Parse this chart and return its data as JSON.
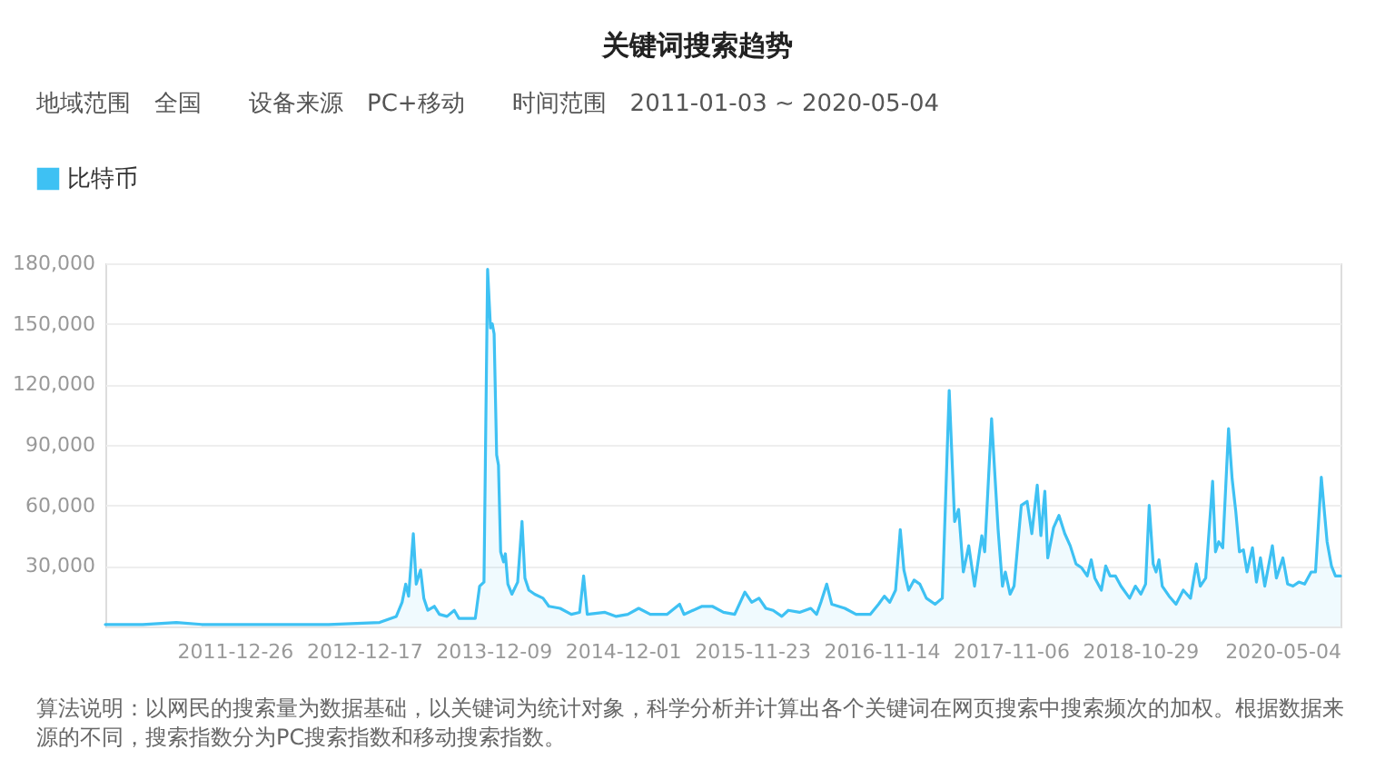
{
  "chart_data": {
    "type": "area",
    "title": "关键词搜索趋势",
    "subtitle": "地域范围　全国　　设备来源　PC+移动　　时间范围　2011-01-03 ~ 2020-05-04",
    "legend": "top left",
    "grid": "y",
    "xlim": [
      "2011-01-03",
      "2020-05-04"
    ],
    "xticks": [
      "2011-12-26",
      "2012-12-17",
      "2013-12-09",
      "2014-12-01",
      "2015-11-23",
      "2016-11-14",
      "2017-11-06",
      "2018-10-29",
      "2020-05-04"
    ],
    "ylim": [
      0,
      180000
    ],
    "yticks": [
      {
        "value": 30000,
        "label": "30,000"
      },
      {
        "value": 60000,
        "label": "60,000"
      },
      {
        "value": 90000,
        "label": "90,000"
      },
      {
        "value": 120000,
        "label": "120,000"
      },
      {
        "value": 150000,
        "label": "150,000"
      },
      {
        "value": 180000,
        "label": "180,000"
      }
    ],
    "x": [
      "2011-01-03",
      "2011-04-16",
      "2011-07-18",
      "2011-09-26",
      "2012-03-08",
      "2012-09-10",
      "2013-01-29",
      "2013-03-16",
      "2013-04-01",
      "2013-04-11",
      "2013-04-19",
      "2013-05-02",
      "2013-05-10",
      "2013-05-22",
      "2013-05-31",
      "2013-06-11",
      "2013-06-29",
      "2013-07-13",
      "2013-08-03",
      "2013-08-23",
      "2013-09-05",
      "2013-10-20",
      "2013-11-01",
      "2013-11-13",
      "2013-11-23",
      "2013-12-01",
      "2013-12-06",
      "2013-12-11",
      "2013-12-18",
      "2013-12-23",
      "2013-12-29",
      "2014-01-06",
      "2014-01-11",
      "2014-01-18",
      "2014-01-29",
      "2014-02-14",
      "2014-02-26",
      "2014-03-06",
      "2014-03-17",
      "2014-04-02",
      "2014-04-25",
      "2014-05-11",
      "2014-06-11",
      "2014-07-12",
      "2014-08-04",
      "2014-08-15",
      "2014-08-25",
      "2014-10-13",
      "2014-11-13",
      "2014-12-15",
      "2015-01-14",
      "2015-02-15",
      "2015-04-02",
      "2015-05-07",
      "2015-05-19",
      "2015-07-08",
      "2015-08-05",
      "2015-09-05",
      "2015-10-06",
      "2015-11-03",
      "2015-11-22",
      "2015-12-12",
      "2015-12-31",
      "2016-01-20",
      "2016-02-13",
      "2016-03-02",
      "2016-04-02",
      "2016-05-03",
      "2016-05-19",
      "2016-05-31",
      "2016-06-16",
      "2016-06-30",
      "2016-08-05",
      "2016-09-05",
      "2016-10-14",
      "2016-11-06",
      "2016-11-22",
      "2016-12-07",
      "2016-12-23",
      "2017-01-05",
      "2017-01-15",
      "2017-01-28",
      "2017-02-12",
      "2017-02-28",
      "2017-03-18",
      "2017-04-11",
      "2017-05-01",
      "2017-05-20",
      "2017-06-04",
      "2017-06-15",
      "2017-06-28",
      "2017-07-13",
      "2017-07-29",
      "2017-08-18",
      "2017-08-26",
      "2017-09-14",
      "2017-10-02",
      "2017-10-14",
      "2017-10-22",
      "2017-11-04",
      "2017-11-15",
      "2017-12-05",
      "2017-12-21",
      "2018-01-03",
      "2018-01-18",
      "2018-01-28",
      "2018-02-08",
      "2018-02-16",
      "2018-03-04",
      "2018-03-19",
      "2018-04-04",
      "2018-04-19",
      "2018-05-05",
      "2018-05-21",
      "2018-06-05",
      "2018-06-16",
      "2018-06-26",
      "2018-07-14",
      "2018-07-26",
      "2018-08-07",
      "2018-08-22",
      "2018-09-06",
      "2018-09-30",
      "2018-10-16",
      "2018-10-31",
      "2018-11-13",
      "2018-11-23",
      "2018-12-04",
      "2018-12-12",
      "2018-12-20",
      "2018-12-29",
      "2019-01-17",
      "2019-02-05",
      "2019-02-25",
      "2019-03-17",
      "2019-04-02",
      "2019-04-13",
      "2019-04-28",
      "2019-05-17",
      "2019-05-25",
      "2019-06-03",
      "2019-06-14",
      "2019-06-30",
      "2019-07-10",
      "2019-07-20",
      "2019-07-30",
      "2019-08-10",
      "2019-08-20",
      "2019-09-04",
      "2019-09-15",
      "2019-09-26",
      "2019-10-08",
      "2019-10-29",
      "2019-11-09",
      "2019-11-27",
      "2019-12-10",
      "2019-12-25",
      "2020-01-10",
      "2020-01-26",
      "2020-02-13",
      "2020-02-25",
      "2020-03-12",
      "2020-03-28",
      "2020-04-09",
      "2020-04-20",
      "2020-05-04"
    ],
    "series": [
      {
        "name": "比特币",
        "color": "#3ec1f3",
        "values": [
          1000,
          1000,
          2000,
          1000,
          1000,
          1000,
          2000,
          5000,
          12000,
          21000,
          15000,
          46000,
          21000,
          28000,
          14000,
          8000,
          10000,
          6000,
          5000,
          8000,
          4000,
          4000,
          20000,
          22000,
          177000,
          148000,
          150000,
          145000,
          85000,
          80000,
          37000,
          32000,
          36000,
          21000,
          16000,
          22000,
          52000,
          24000,
          18000,
          16000,
          14000,
          10000,
          9000,
          6000,
          7000,
          25000,
          6000,
          7000,
          5000,
          6000,
          9000,
          6000,
          6000,
          11000,
          6000,
          10000,
          10000,
          7000,
          6000,
          17000,
          12000,
          14000,
          9000,
          8000,
          5000,
          8000,
          7000,
          9000,
          6000,
          12000,
          21000,
          11000,
          9000,
          6000,
          6000,
          11000,
          15000,
          12000,
          18000,
          48000,
          28000,
          18000,
          23000,
          21000,
          14000,
          11000,
          14000,
          117000,
          52000,
          58000,
          27000,
          40000,
          20000,
          45000,
          37000,
          103000,
          48000,
          20000,
          27000,
          16000,
          20000,
          60000,
          62000,
          46000,
          70000,
          45000,
          67000,
          34000,
          49000,
          55000,
          46000,
          40000,
          31000,
          29000,
          25000,
          33000,
          24000,
          18000,
          30000,
          25000,
          25000,
          20000,
          14000,
          20000,
          16000,
          21000,
          60000,
          31000,
          27000,
          33000,
          20000,
          15000,
          11000,
          18000,
          14000,
          31000,
          20000,
          24000,
          72000,
          37000,
          42000,
          39000,
          98000,
          73000,
          57000,
          37000,
          38000,
          27000,
          39000,
          22000,
          34000,
          20000,
          40000,
          24000,
          34000,
          21000,
          20000,
          22000,
          21000,
          27000,
          27000,
          74000,
          42000,
          30000,
          25000,
          25000
        ]
      }
    ],
    "annotations": [
      "算法说明：以网民的搜索量为数据基础，以关键词为统计对象，科学分析并计算出各个关键词在网页搜索中搜索频次的加权。根据数据来源的不同，搜索指数分为PC搜索指数和移动搜索指数。"
    ]
  }
}
